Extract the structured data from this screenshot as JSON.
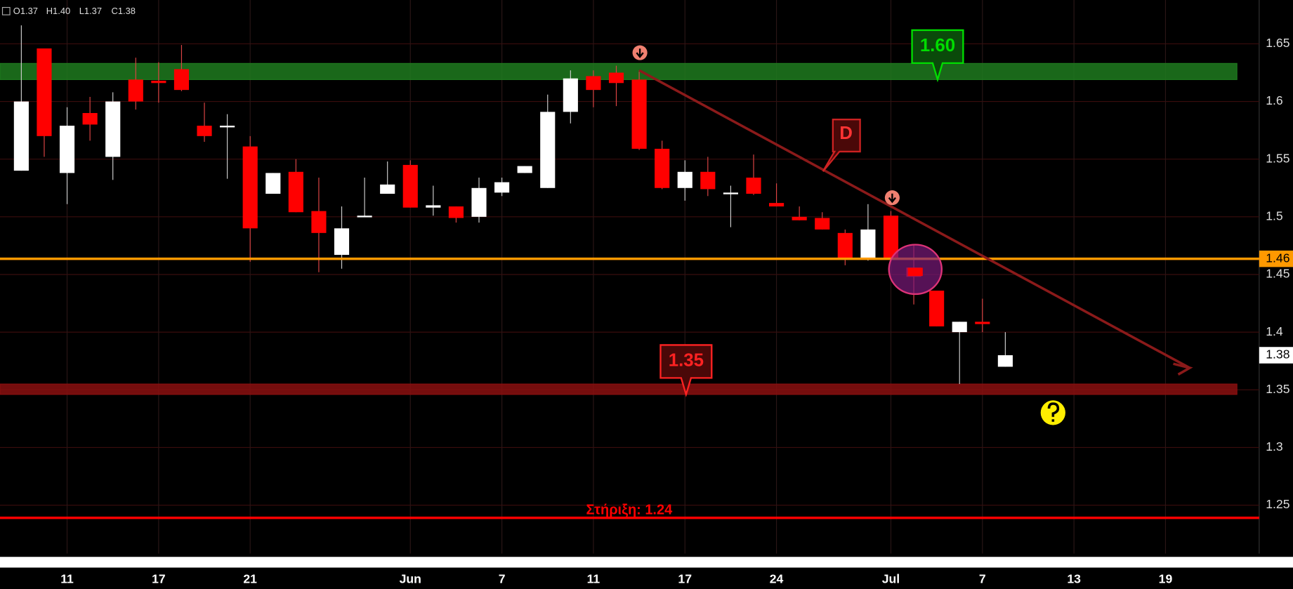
{
  "chart_data": {
    "type": "candlestick",
    "ohlc_header": [
      "O1.37",
      "H1.40",
      "L1.37",
      "C1.38"
    ],
    "categories": [
      null,
      null,
      "11",
      null,
      null,
      null,
      "17",
      null,
      null,
      null,
      "21",
      null,
      null,
      null,
      null,
      null,
      null,
      "Jun",
      null,
      null,
      null,
      "7",
      null,
      null,
      null,
      "11",
      null,
      null,
      null,
      "17",
      null,
      null,
      null,
      "24",
      null,
      null,
      null,
      null,
      "Jul",
      null,
      null,
      null,
      "7",
      null,
      null,
      null,
      "13",
      null,
      null,
      null,
      "19",
      null,
      null,
      null,
      null
    ],
    "open": [
      1.54,
      1.646,
      1.538,
      1.59,
      1.552,
      1.619,
      1.618,
      1.628,
      1.579,
      1.579,
      1.561,
      1.52,
      1.539,
      1.505,
      1.467,
      1.5,
      1.52,
      1.545,
      1.508,
      1.509,
      1.5,
      1.521,
      1.538,
      1.525,
      1.591,
      1.622,
      1.625,
      1.619,
      1.559,
      1.525,
      1.539,
      1.521,
      1.534,
      1.512,
      1.5,
      1.499,
      1.486,
      1.464,
      1.501,
      1.456,
      1.436,
      1.4,
      1.409,
      1.37,
      null,
      null,
      null,
      null,
      null,
      null,
      null,
      null,
      null,
      null,
      null
    ],
    "high": [
      1.666,
      1.646,
      1.595,
      1.604,
      1.608,
      1.638,
      1.634,
      1.649,
      1.599,
      1.589,
      1.57,
      1.538,
      1.55,
      1.534,
      1.509,
      1.534,
      1.548,
      1.549,
      1.527,
      1.509,
      1.534,
      1.534,
      1.544,
      1.606,
      1.627,
      1.627,
      1.631,
      1.627,
      1.566,
      1.549,
      1.552,
      1.527,
      1.554,
      1.529,
      1.509,
      1.504,
      1.489,
      1.511,
      1.505,
      1.476,
      1.436,
      1.409,
      1.429,
      1.4,
      null,
      null,
      null,
      null,
      null,
      null,
      null,
      null,
      null,
      null,
      null
    ],
    "low": [
      1.54,
      1.552,
      1.511,
      1.566,
      1.532,
      1.593,
      1.599,
      1.609,
      1.565,
      1.533,
      1.461,
      1.52,
      1.504,
      1.452,
      1.455,
      1.5,
      1.52,
      1.508,
      1.501,
      1.495,
      1.495,
      1.518,
      1.538,
      1.525,
      1.581,
      1.595,
      1.596,
      1.558,
      1.524,
      1.514,
      1.518,
      1.491,
      1.519,
      1.509,
      1.497,
      1.489,
      1.458,
      1.462,
      1.463,
      1.424,
      1.405,
      1.355,
      1.4,
      1.37,
      null,
      null,
      null,
      null,
      null,
      null,
      null,
      null,
      null,
      null,
      null
    ],
    "close": [
      1.6,
      1.57,
      1.579,
      1.58,
      1.6,
      1.6,
      1.616,
      1.61,
      1.57,
      1.579,
      1.49,
      1.538,
      1.504,
      1.486,
      1.49,
      1.501,
      1.528,
      1.508,
      1.51,
      1.499,
      1.525,
      1.53,
      1.544,
      1.591,
      1.62,
      1.61,
      1.616,
      1.559,
      1.525,
      1.539,
      1.524,
      1.521,
      1.52,
      1.509,
      1.497,
      1.489,
      1.464,
      1.489,
      1.464,
      1.448,
      1.405,
      1.409,
      1.407,
      1.38,
      null,
      null,
      null,
      null,
      null,
      null,
      null,
      null,
      null,
      null,
      null
    ],
    "up_color": "#ffffff",
    "down_color": "#ff0000",
    "ylim": [
      1.208,
      1.688
    ],
    "yticks": [
      1.25,
      1.3,
      1.35,
      1.4,
      1.45,
      1.5,
      1.55,
      1.6,
      1.65
    ],
    "grid": true,
    "last_price": 1.38,
    "price_line": {
      "value": 1.4636,
      "label": "1.46",
      "color": "#ff9900"
    },
    "support_line": {
      "value": 1.239,
      "label": "Στήριξη: 1.24",
      "color": "#ff0000"
    },
    "zones": [
      {
        "range": [
          1.619,
          1.633
        ],
        "color": "#1f7a1f",
        "label": "1.60",
        "label_color": "#00dd00"
      },
      {
        "range": [
          1.346,
          1.355
        ],
        "color": "#8a0f0f",
        "label": "1.35",
        "label_color": "#ff2222"
      }
    ],
    "trendline": {
      "x": [
        27,
        51.06
      ],
      "y": [
        1.627,
        1.369
      ],
      "color": "#8b1a1a",
      "label": "D"
    }
  }
}
